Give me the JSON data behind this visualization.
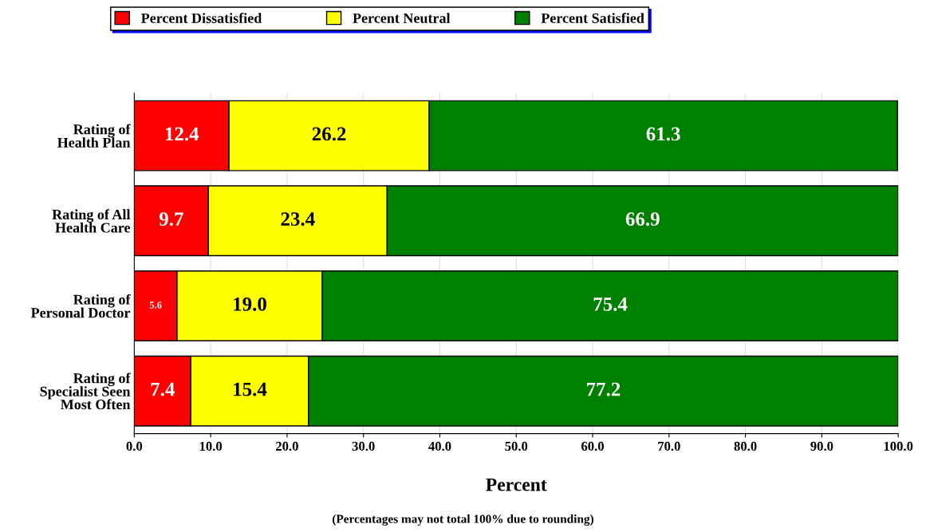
{
  "chart_data": {
    "type": "bar",
    "orientation": "horizontal",
    "stacked": true,
    "categories": [
      "Rating of\nHealth Plan",
      "Rating of All\nHealth Care",
      "Rating of\nPersonal Doctor",
      "Rating of\nSpecialist Seen\nMost Often"
    ],
    "series": [
      {
        "name": "Percent Dissatisfied",
        "color": "#ff0000",
        "values": [
          12.4,
          9.7,
          5.6,
          7.4
        ],
        "value_labels": [
          "12.4",
          "9.7",
          "5.6",
          "7.4"
        ]
      },
      {
        "name": "Percent Neutral",
        "color": "#ffff00",
        "values": [
          26.2,
          23.4,
          19.0,
          15.4
        ],
        "value_labels": [
          "26.2",
          "23.4",
          "19.0",
          "15.4"
        ]
      },
      {
        "name": "Percent Satisfied",
        "color": "#008000",
        "values": [
          61.3,
          66.9,
          75.4,
          77.2
        ],
        "value_labels": [
          "61.3",
          "66.9",
          "75.4",
          "77.2"
        ]
      }
    ],
    "xlim": [
      0,
      100
    ],
    "xticks": [
      {
        "value": 0,
        "label": "0.0"
      },
      {
        "value": 10,
        "label": "10.0"
      },
      {
        "value": 20,
        "label": "20.0"
      },
      {
        "value": 30,
        "label": "30.0"
      },
      {
        "value": 40,
        "label": "40.0"
      },
      {
        "value": 50,
        "label": "50.0"
      },
      {
        "value": 60,
        "label": "60.0"
      },
      {
        "value": 70,
        "label": "70.0"
      },
      {
        "value": 80,
        "label": "80.0"
      },
      {
        "value": 90,
        "label": "90.0"
      },
      {
        "value": 100,
        "label": "100.0"
      }
    ],
    "xlabel": "Percent",
    "annotations": [
      "(Percentages may not total 100% due to rounding)"
    ],
    "grid": "x",
    "legend": "top"
  }
}
